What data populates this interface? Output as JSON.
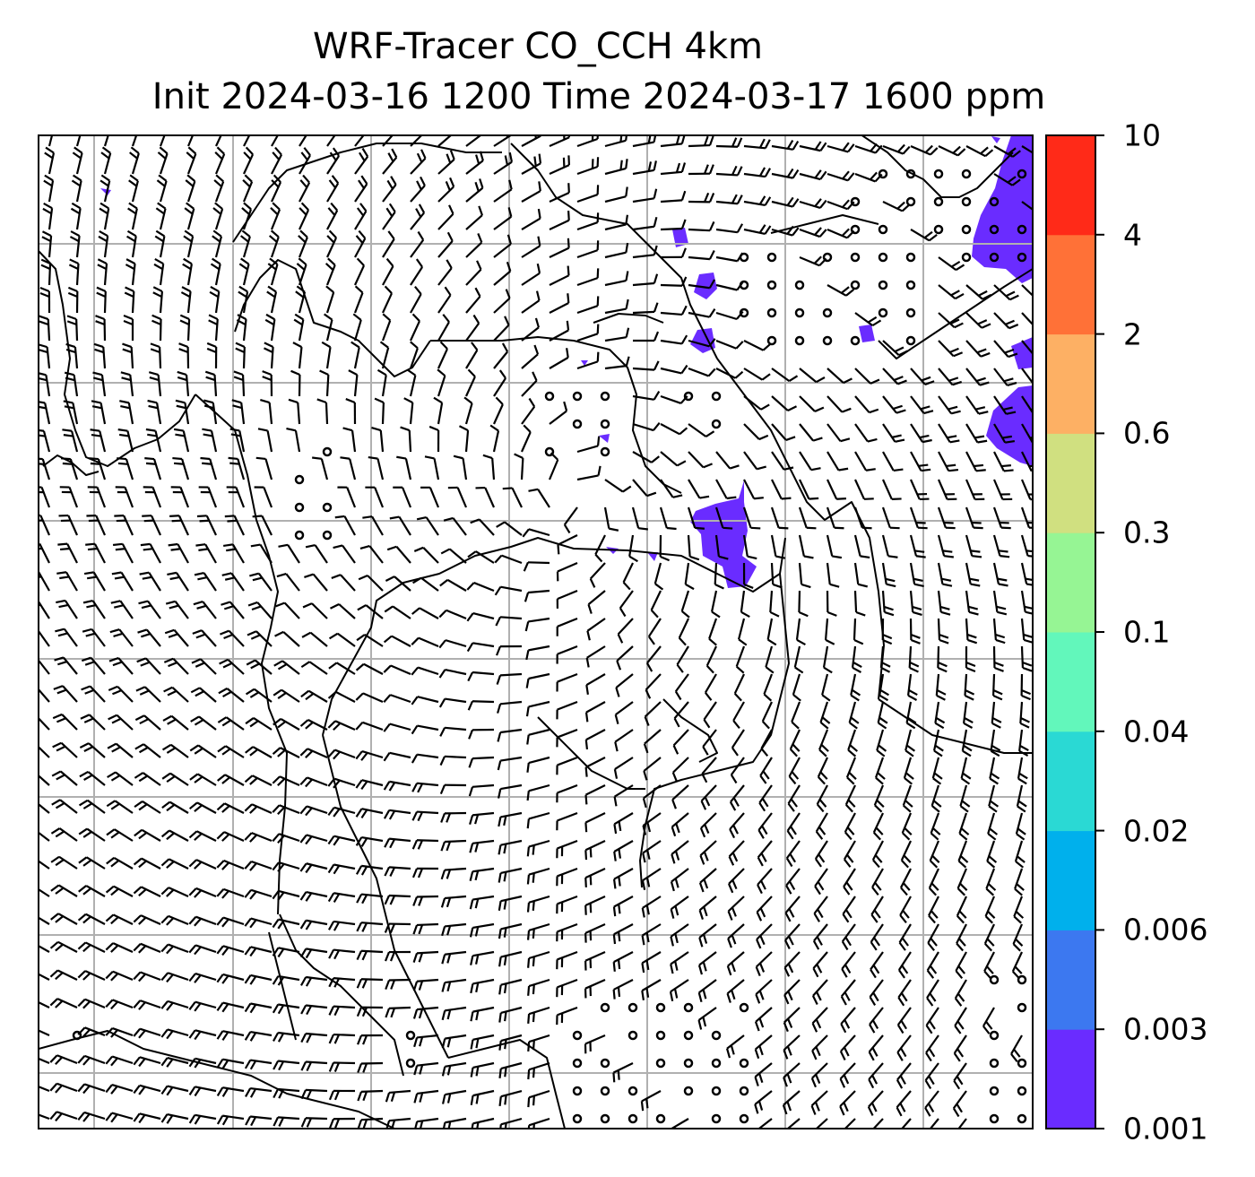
{
  "title": {
    "line1": "WRF-Tracer CO_CCH 4km",
    "line2": "Init 2024-03-16 1200 Time 2024-03-17 1600 ppm"
  },
  "colorbar": {
    "levels": [
      "0.001",
      "0.003",
      "0.006",
      "0.02",
      "0.04",
      "0.1",
      "0.3",
      "0.6",
      "2",
      "4",
      "10"
    ],
    "colors": [
      "#6a2cff",
      "#3c78f0",
      "#00b0ec",
      "#2ad9d4",
      "#62f7bb",
      "#96f594",
      "#d0e080",
      "#fdb064",
      "#ff7137",
      "#ff2a18"
    ]
  },
  "map": {
    "tracer_color": "#6a2cff",
    "grid_color": "#b0b0b0",
    "coastline_color": "#000000",
    "barb_color": "#000000"
  }
}
